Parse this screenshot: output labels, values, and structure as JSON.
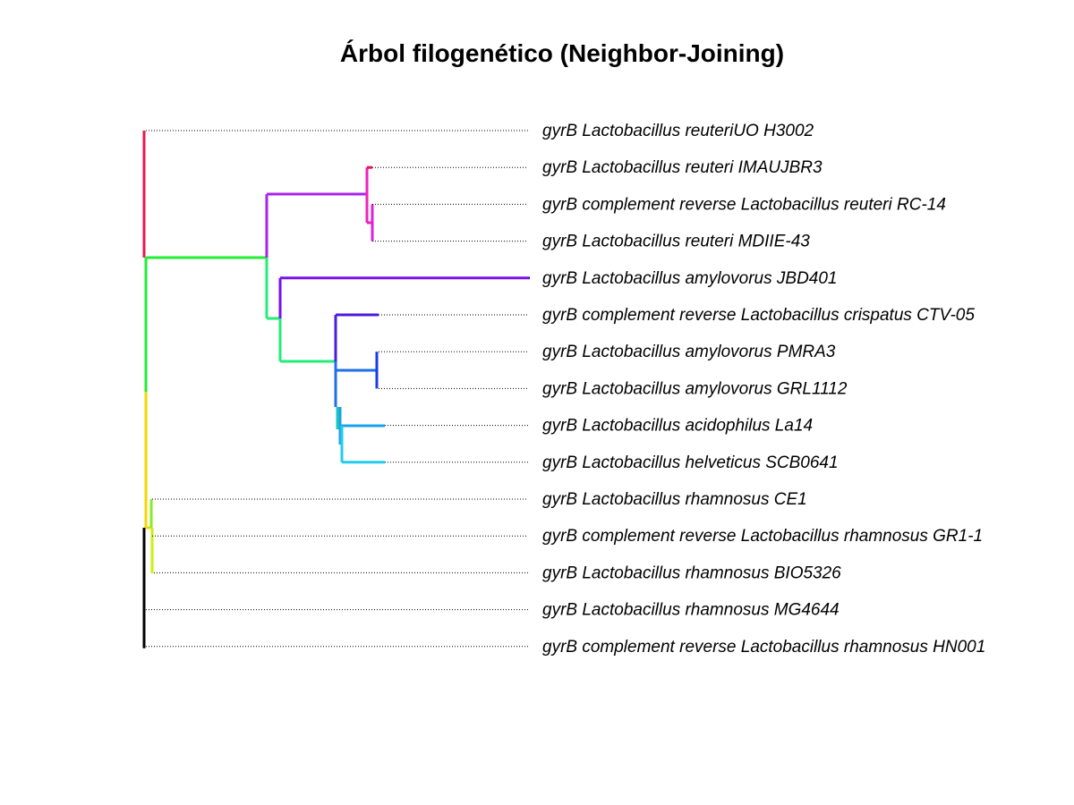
{
  "title": "Árbol filogenético (Neighbor-Joining)",
  "tips": [
    "gyrB Lactobacillus reuteriUO H3002",
    "gyrB Lactobacillus reuteri IMAUJBR3",
    "gyrB complement reverse Lactobacillus reuteri RC-14",
    "gyrB Lactobacillus reuteri MDIIE-43",
    "gyrB Lactobacillus amylovorus JBD401",
    "gyrB complement reverse Lactobacillus crispatus CTV-05",
    "gyrB Lactobacillus amylovorus PMRA3",
    "gyrB Lactobacillus amylovorus GRL1112",
    "gyrB Lactobacillus acidophilus La14",
    "gyrB Lactobacillus helveticus SCB0641",
    "gyrB Lactobacillus rhamnosus CE1",
    "gyrB complement reverse Lactobacillus rhamnosus GR1-1",
    "gyrB Lactobacillus rhamnosus BIO5326",
    "gyrB Lactobacillus rhamnosus MG4644",
    "gyrB complement reverse Lactobacillus rhamnosus HN001"
  ],
  "colors": {
    "root": "#000000",
    "clade_top": "#e8194f",
    "green": "#22ee33",
    "yellow": "#f2d800",
    "lime": "#88ee22",
    "yellowgreen": "#ccee11",
    "violet": "#aa22ee",
    "magenta": "#ee22bb",
    "purple": "#dd22dd",
    "indigo": "#7a10ee",
    "springgreen": "#22ee77",
    "blueviolet": "#4b1be0",
    "blue": "#1a3be8",
    "azure": "#1e6fe8",
    "teal": "#1ec8b8",
    "sky": "#1aa0ee",
    "cyan": "#22ccee"
  }
}
